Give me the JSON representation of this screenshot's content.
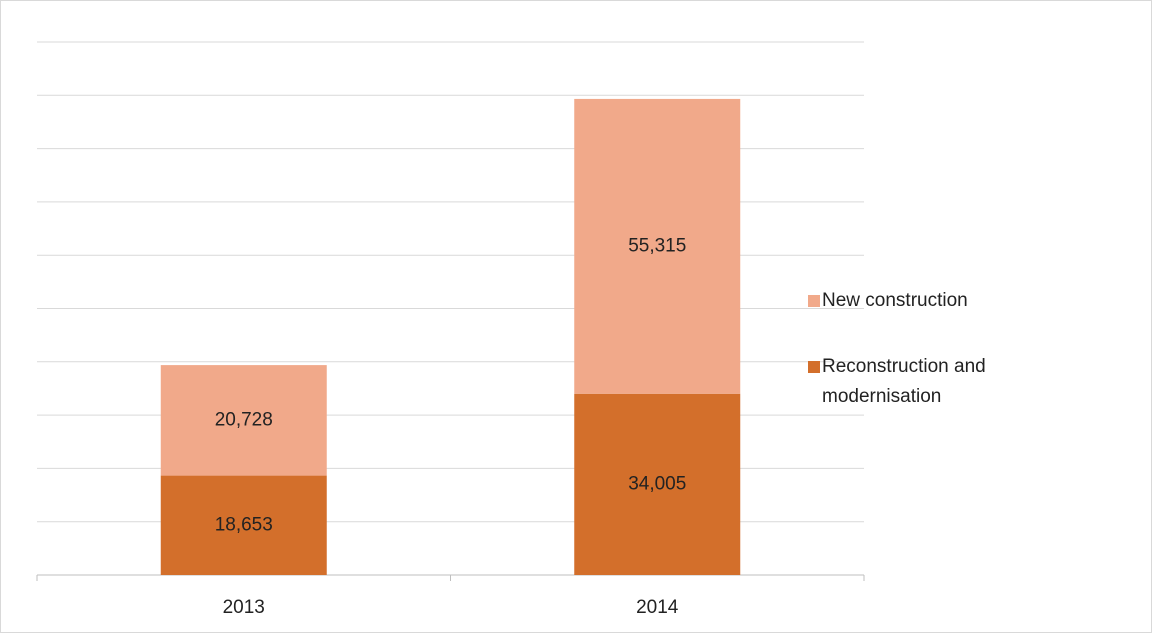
{
  "chart_data": {
    "type": "stacked_bar",
    "categories": [
      "2013",
      "2014"
    ],
    "series": [
      {
        "name": "Reconstruction and modernisation",
        "color": "#d36f2b",
        "values": [
          18653,
          34005
        ],
        "value_labels": [
          "18,653",
          "34,005"
        ]
      },
      {
        "name": "New construction",
        "color": "#f1a98a",
        "values": [
          20728,
          55315
        ],
        "value_labels": [
          "20,728",
          "55,315"
        ]
      }
    ],
    "ylim": [
      0,
      100000
    ],
    "yticks": [
      0,
      10000,
      20000,
      30000,
      40000,
      50000,
      60000,
      70000,
      80000,
      90000,
      100000
    ],
    "grid": true
  }
}
